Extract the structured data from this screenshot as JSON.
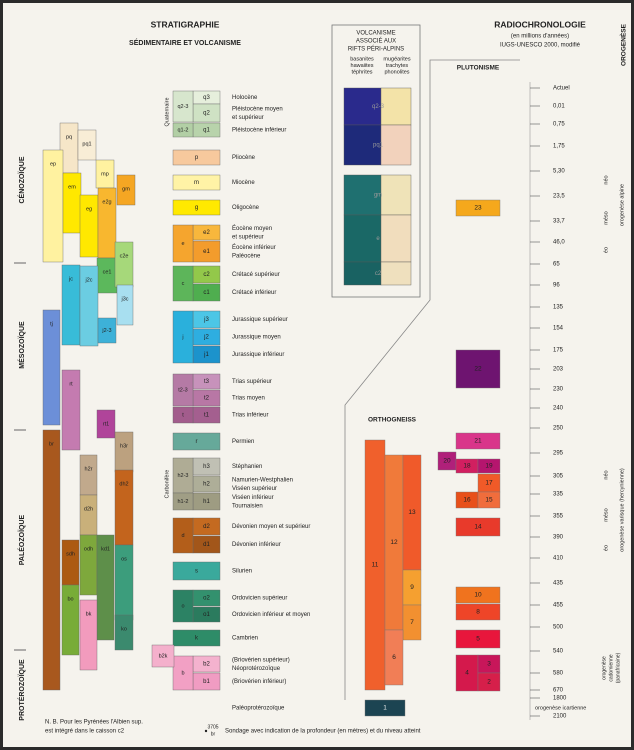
{
  "header": {
    "stratigraphie": "STRATIGRAPHIE",
    "subtitle": "SÉDIMENTAIRE ET VOLCANISME",
    "radiochronologie": "RADIOCHRONOLOGIE",
    "units": "(en millions d'années)",
    "source": "IUGS-UNESCO 2000, modifié",
    "plutonisme": "PLUTONISME",
    "orogenese": "OROGENÈSE",
    "orthogneiss": "ORTHOGNEISS"
  },
  "volcanism": {
    "title": [
      "VOLCANISME",
      "ASSOCIÉ AUX",
      "RIFTS PÉRI-ALPINS"
    ],
    "col1": [
      "basanites",
      "hawaiites",
      "téphrites"
    ],
    "col2": [
      "mugéarites",
      "trachytes",
      "phonolites"
    ],
    "codes": [
      "q2-3",
      "pq1",
      "gm",
      "e",
      "c2"
    ]
  },
  "eras": [
    "CÉNOZOÏQUE",
    "MÉSOZOÏQUE",
    "PALÉOZOÏQUE",
    "PROTÉROZOÏQUE"
  ],
  "periods": [
    "Quaternaire",
    "Carbonifère"
  ],
  "units": [
    {
      "code": "q3",
      "label": [
        "Holocène"
      ]
    },
    {
      "code": "q2",
      "label": [
        "Pléistocène moyen",
        "et supérieur"
      ]
    },
    {
      "code": "q1",
      "label": [
        "Pléistocène inférieur"
      ]
    },
    {
      "code": "p",
      "label": [
        "Pliocène"
      ]
    },
    {
      "code": "m",
      "label": [
        "Miocène"
      ]
    },
    {
      "code": "g",
      "label": [
        "Oligocène"
      ]
    },
    {
      "code": "e2",
      "label": [
        "Éocène moyen",
        "et supérieur"
      ]
    },
    {
      "code": "e1",
      "label": [
        "Éocène inférieur",
        "Paléocène"
      ]
    },
    {
      "code": "c2",
      "label": [
        "Crétacé supérieur"
      ]
    },
    {
      "code": "c1",
      "label": [
        "Crétacé inférieur"
      ]
    },
    {
      "code": "j3",
      "label": [
        "Jurassique supérieur"
      ]
    },
    {
      "code": "j2",
      "label": [
        "Jurassique moyen"
      ]
    },
    {
      "code": "j1",
      "label": [
        "Jurassique inférieur"
      ]
    },
    {
      "code": "t3",
      "label": [
        "Trias supérieur"
      ]
    },
    {
      "code": "t2",
      "label": [
        "Trias moyen"
      ]
    },
    {
      "code": "t1",
      "label": [
        "Trias inférieur"
      ]
    },
    {
      "code": "r",
      "label": [
        "Permien"
      ]
    },
    {
      "code": "h3",
      "label": [
        "Stéphanien"
      ]
    },
    {
      "code": "h2",
      "label": [
        "Namurien-Westphalien",
        "Viséen supérieur"
      ]
    },
    {
      "code": "h1",
      "label": [
        "Viséen inférieur",
        "Tournaisien"
      ]
    },
    {
      "code": "d2",
      "label": [
        "Dévonien moyen et supérieur"
      ]
    },
    {
      "code": "d1",
      "label": [
        "Dévonien inférieur"
      ]
    },
    {
      "code": "s",
      "label": [
        "Silurien"
      ]
    },
    {
      "code": "o2",
      "label": [
        "Ordovicien supérieur"
      ]
    },
    {
      "code": "o1",
      "label": [
        "Ordovicien inférieur et moyen"
      ]
    },
    {
      "code": "k",
      "label": [
        "Cambrien"
      ]
    },
    {
      "code": "b2",
      "label": [
        "(Briovérien supérieur)",
        "Néoprotérozoïque"
      ]
    },
    {
      "code": "b1",
      "label": [
        "(Briovérien inférieur)"
      ]
    },
    {
      "label": [
        "Paléoprotérozoïque"
      ]
    }
  ],
  "groups": [
    "q2-3",
    "q1-2",
    "e",
    "c",
    "j",
    "t2-3",
    "t",
    "h2-3",
    "h1-2",
    "d",
    "o",
    "b"
  ],
  "combined": [
    "pq",
    "pq1",
    "mp",
    "ep",
    "em",
    "eg",
    "e2g",
    "gm",
    "ce1",
    "c2e",
    "jc",
    "j2c",
    "j3c",
    "j2-3",
    "tj",
    "rt",
    "rt1",
    "h2r",
    "h3r",
    "dh2",
    "d2h",
    "br",
    "sdh",
    "odh",
    "kd1",
    "os",
    "bo",
    "bk",
    "ko",
    "b2k"
  ],
  "ages": [
    "Actuel",
    "0,01",
    "0,75",
    "1,75",
    "5,30",
    "23,5",
    "33,7",
    "46,0",
    "65",
    "96",
    "135",
    "154",
    "175",
    "203",
    "230",
    "240",
    "250",
    "295",
    "305",
    "335",
    "355",
    "390",
    "410",
    "435",
    "455",
    "500",
    "540",
    "580",
    "670",
    "1800",
    "2100"
  ],
  "plutonism": [
    "23",
    "22",
    "21",
    "20",
    "18",
    "19",
    "17",
    "16",
    "15",
    "14",
    "10",
    "8",
    "5",
    "4",
    "3",
    "2"
  ],
  "orthogneiss": [
    "11",
    "12",
    "13",
    "9",
    "7",
    "6",
    "1"
  ],
  "orogeny": {
    "alpine": "orogenèse alpine",
    "varisque": "orogenèse varisque (hercynienne)",
    "cadomienne": [
      "orogenèse",
      "cadomienne",
      "(panafricaine)"
    ],
    "icartienne": "orogenèse icartienne",
    "alpine_phases": [
      "néo",
      "méso",
      "éo"
    ],
    "varisque_phases": [
      "néo",
      "méso",
      "éo"
    ]
  },
  "notes": {
    "nb": [
      "N. B.  Pour les Pyrénées l'Albien sup.",
      "est intégré dans le caisson c2"
    ],
    "depth": "3705",
    "code": "br",
    "sondage": "Sondage avec indication de la profondeur (en mètres) et du niveau atteint"
  }
}
